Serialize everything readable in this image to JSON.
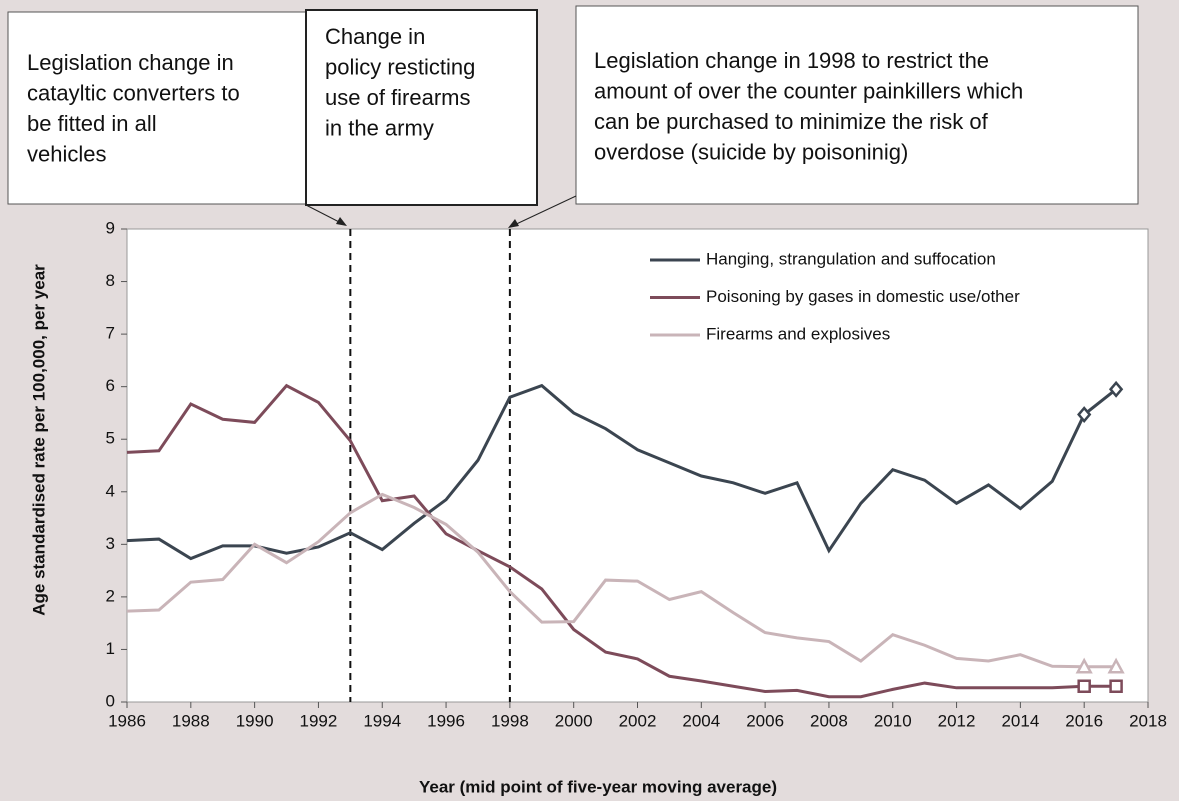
{
  "chart_data": {
    "type": "line",
    "xlabel": "Year (mid point of five-year moving average)",
    "ylabel": "Age standardised rate per 100,000, per year",
    "x": [
      1986,
      1987,
      1988,
      1989,
      1990,
      1991,
      1992,
      1993,
      1994,
      1995,
      1996,
      1997,
      1998,
      1999,
      2000,
      2001,
      2002,
      2003,
      2004,
      2005,
      2006,
      2007,
      2008,
      2009,
      2010,
      2011,
      2012,
      2013,
      2014,
      2015,
      2016,
      2017
    ],
    "series": [
      {
        "name": "Hanging, strangulation and suffocation",
        "color": "#3b4550",
        "marker": "diamond",
        "marked_x": [
          2016,
          2017
        ],
        "values": [
          3.07,
          3.1,
          2.73,
          2.97,
          2.97,
          2.83,
          2.95,
          3.22,
          2.9,
          3.4,
          3.85,
          4.6,
          5.8,
          6.02,
          5.5,
          5.2,
          4.8,
          4.55,
          4.3,
          4.17,
          3.97,
          4.17,
          2.88,
          3.78,
          4.42,
          4.22,
          3.78,
          4.13,
          3.68,
          4.2,
          5.47,
          5.95
        ]
      },
      {
        "name": "Poisoning by gases in domestic use/other",
        "color": "#7d4b5a",
        "marker": "square",
        "marked_x": [
          2016,
          2017
        ],
        "values": [
          4.75,
          4.78,
          5.67,
          5.38,
          5.32,
          6.02,
          5.7,
          4.97,
          3.83,
          3.92,
          3.2,
          2.88,
          2.57,
          2.15,
          1.38,
          0.95,
          0.82,
          0.49,
          0.4,
          0.3,
          0.2,
          0.22,
          0.1,
          0.1,
          0.24,
          0.36,
          0.27,
          0.27,
          0.27,
          0.27,
          0.3,
          0.3
        ]
      },
      {
        "name": "Firearms and explosives",
        "color": "#c9b4b8",
        "marker": "triangle",
        "marked_x": [
          2016,
          2017
        ],
        "values": [
          1.73,
          1.75,
          2.28,
          2.33,
          3.0,
          2.65,
          3.05,
          3.6,
          3.95,
          3.7,
          3.38,
          2.85,
          2.1,
          1.52,
          1.53,
          2.32,
          2.3,
          1.95,
          2.1,
          1.7,
          1.32,
          1.22,
          1.15,
          0.78,
          1.28,
          1.08,
          0.83,
          0.78,
          0.9,
          0.68,
          0.67,
          0.67
        ]
      }
    ],
    "xlim": [
      1986,
      2018
    ],
    "xticks": [
      1986,
      1988,
      1990,
      1992,
      1994,
      1996,
      1998,
      2000,
      2002,
      2004,
      2006,
      2008,
      2010,
      2012,
      2014,
      2016,
      2018
    ],
    "ylim": [
      0,
      9
    ],
    "yticks": [
      0,
      1,
      2,
      3,
      4,
      5,
      6,
      7,
      8,
      9
    ],
    "reference_lines": [
      1993,
      1998
    ],
    "legend": "upper right",
    "annotations": [
      {
        "lines": [
          "Legislation change in",
          "catayltic converters to",
          "be fitted in all",
          "vehicles"
        ]
      },
      {
        "lines": [
          "Change in",
          "policy resticting",
          "use of firearms",
          "in the army"
        ]
      },
      {
        "lines": [
          "Legislation change in 1998 to restrict the",
          "amount of over the counter painkillers which",
          "can be purchased to minimize  the risk of",
          "overdose (suicide by poisoninig)"
        ]
      }
    ]
  }
}
